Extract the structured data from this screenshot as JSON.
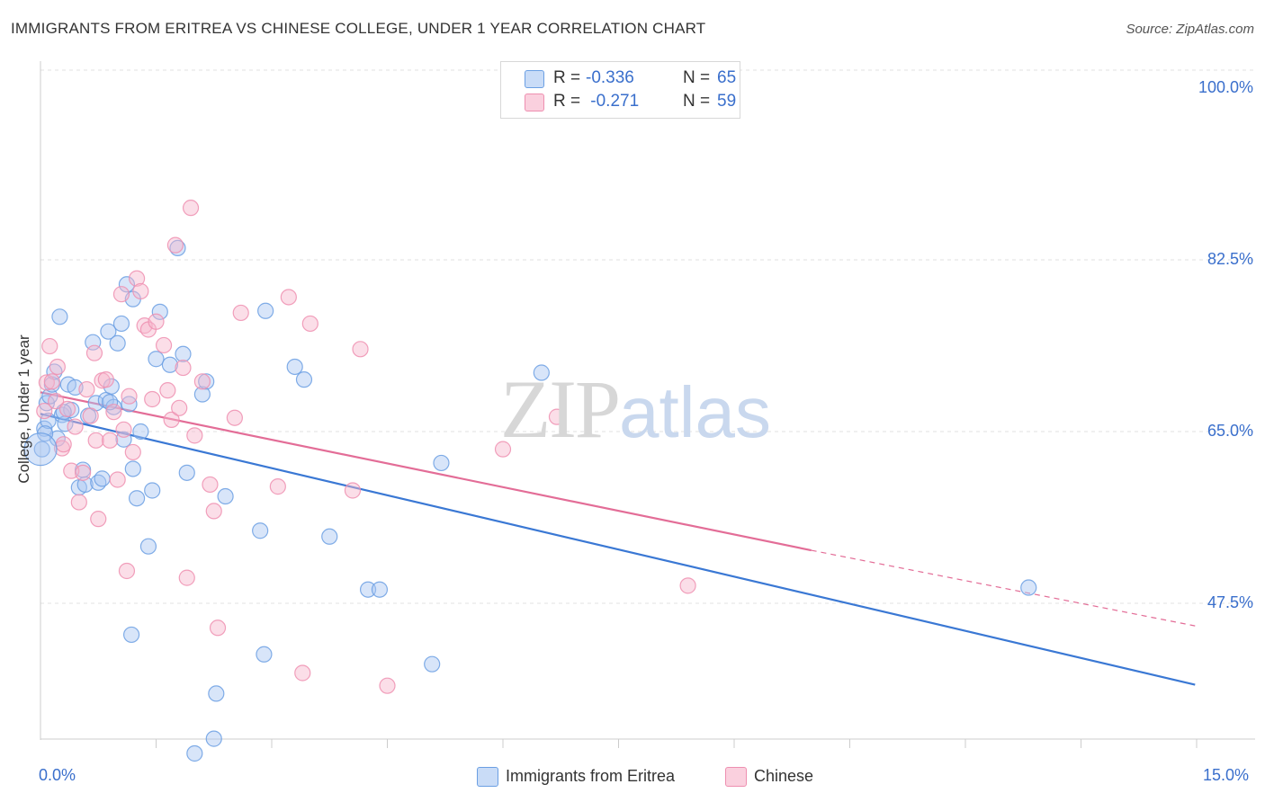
{
  "header": {
    "title": "IMMIGRANTS FROM ERITREA VS CHINESE COLLEGE, UNDER 1 YEAR CORRELATION CHART",
    "source": "Source: ZipAtlas.com"
  },
  "stats": [
    {
      "r_label": "R =",
      "r_value": "-0.336",
      "n_label": "N =",
      "n_value": "65",
      "color": "#a9c6f2"
    },
    {
      "r_label": "R =",
      "r_value": " -0.271",
      "n_label": "N =",
      "n_value": "59",
      "color": "#f6b6cb"
    }
  ],
  "legend": [
    {
      "label": "Immigrants from Eritrea",
      "color": "#a9c6f2"
    },
    {
      "label": "Chinese",
      "color": "#f6b6cb"
    }
  ],
  "watermark": {
    "zip": "ZIP",
    "atlas": "atlas"
  },
  "chart_data": {
    "type": "scatter",
    "title": "IMMIGRANTS FROM ERITREA VS CHINESE COLLEGE, UNDER 1 YEAR CORRELATION CHART",
    "xlabel": "",
    "ylabel": "College, Under 1 year",
    "xlim": [
      0,
      15
    ],
    "ylim": [
      33,
      101
    ],
    "x_ticks": [
      "0.0%",
      "15.0%"
    ],
    "y_ticks": [
      {
        "value": 100,
        "label": "100.0%"
      },
      {
        "value": 82.5,
        "label": "82.5%"
      },
      {
        "value": 65,
        "label": "65.0%"
      },
      {
        "value": 47.5,
        "label": "47.5%"
      }
    ],
    "grid": true,
    "legend_position": "bottom-center",
    "series": [
      {
        "name": "Immigrants from Eritrea",
        "color": "#6b9fe3",
        "fill": "#a9c6f2",
        "line_color": "#3a78d4",
        "trend": {
          "x": [
            0,
            14.98
          ],
          "y": [
            66.8,
            39.2
          ]
        },
        "points": [
          [
            0.02,
            63.2
          ],
          [
            0.05,
            65.3
          ],
          [
            0.08,
            67.9
          ],
          [
            0.1,
            66.1
          ],
          [
            0.12,
            68.6
          ],
          [
            0.15,
            69.8
          ],
          [
            0.18,
            71.1
          ],
          [
            0.22,
            64.3
          ],
          [
            0.25,
            76.7
          ],
          [
            0.28,
            66.7
          ],
          [
            0.32,
            65.8
          ],
          [
            0.36,
            69.8
          ],
          [
            0.4,
            67.2
          ],
          [
            0.45,
            69.5
          ],
          [
            0.5,
            59.3
          ],
          [
            0.55,
            61.1
          ],
          [
            0.58,
            59.6
          ],
          [
            0.62,
            66.6
          ],
          [
            0.68,
            74.1
          ],
          [
            0.72,
            67.9
          ],
          [
            0.75,
            59.8
          ],
          [
            0.8,
            60.2
          ],
          [
            0.85,
            68.2
          ],
          [
            0.88,
            75.2
          ],
          [
            0.92,
            69.6
          ],
          [
            0.95,
            67.5
          ],
          [
            1.0,
            74.0
          ],
          [
            1.05,
            76.0
          ],
          [
            1.08,
            64.2
          ],
          [
            1.12,
            80.0
          ],
          [
            1.15,
            67.8
          ],
          [
            1.2,
            61.2
          ],
          [
            1.25,
            58.2
          ],
          [
            1.3,
            65.0
          ],
          [
            1.4,
            53.3
          ],
          [
            1.45,
            59.0
          ],
          [
            1.5,
            72.4
          ],
          [
            1.55,
            77.2
          ],
          [
            1.68,
            71.8
          ],
          [
            1.78,
            83.7
          ],
          [
            1.85,
            72.9
          ],
          [
            1.9,
            60.8
          ],
          [
            2.0,
            32.2
          ],
          [
            2.1,
            68.8
          ],
          [
            2.15,
            70.1
          ],
          [
            2.25,
            33.7
          ],
          [
            2.28,
            38.3
          ],
          [
            2.4,
            58.4
          ],
          [
            2.85,
            54.9
          ],
          [
            2.9,
            42.3
          ],
          [
            2.92,
            77.3
          ],
          [
            3.3,
            71.6
          ],
          [
            3.42,
            70.3
          ],
          [
            3.75,
            54.3
          ],
          [
            4.25,
            48.9
          ],
          [
            4.4,
            48.9
          ],
          [
            5.08,
            41.3
          ],
          [
            5.2,
            61.8
          ],
          [
            6.5,
            71.0
          ],
          [
            12.82,
            49.1
          ],
          [
            0.9,
            68.0
          ],
          [
            1.2,
            78.5
          ],
          [
            0.06,
            64.8
          ],
          [
            0.3,
            67.0
          ],
          [
            1.18,
            44.3
          ]
        ]
      },
      {
        "name": "Chinese",
        "color": "#ee8fb0",
        "fill": "#f6b6cb",
        "line_color": "#e36d97",
        "trend": {
          "x": [
            0,
            10.0
          ],
          "y": [
            69.0,
            52.9
          ]
        },
        "trend_dash": {
          "x": [
            10.0,
            14.98
          ],
          "y": [
            52.9,
            45.2
          ]
        },
        "points": [
          [
            0.05,
            67.1
          ],
          [
            0.08,
            70.0
          ],
          [
            0.12,
            73.7
          ],
          [
            0.15,
            70.1
          ],
          [
            0.2,
            68.1
          ],
          [
            0.22,
            71.6
          ],
          [
            0.28,
            63.3
          ],
          [
            0.3,
            63.7
          ],
          [
            0.35,
            67.3
          ],
          [
            0.4,
            61.0
          ],
          [
            0.45,
            65.5
          ],
          [
            0.5,
            57.8
          ],
          [
            0.55,
            60.8
          ],
          [
            0.6,
            69.3
          ],
          [
            0.65,
            66.6
          ],
          [
            0.7,
            73.0
          ],
          [
            0.72,
            64.1
          ],
          [
            0.75,
            56.1
          ],
          [
            0.8,
            70.2
          ],
          [
            0.85,
            70.3
          ],
          [
            0.9,
            64.1
          ],
          [
            0.95,
            67.0
          ],
          [
            1.0,
            60.1
          ],
          [
            1.05,
            79.0
          ],
          [
            1.08,
            65.2
          ],
          [
            1.12,
            50.8
          ],
          [
            1.15,
            68.6
          ],
          [
            1.2,
            62.9
          ],
          [
            1.25,
            80.6
          ],
          [
            1.3,
            79.3
          ],
          [
            1.35,
            75.8
          ],
          [
            1.4,
            75.4
          ],
          [
            1.45,
            68.3
          ],
          [
            1.5,
            76.2
          ],
          [
            1.6,
            73.8
          ],
          [
            1.65,
            69.2
          ],
          [
            1.7,
            66.2
          ],
          [
            1.75,
            84.0
          ],
          [
            1.8,
            67.4
          ],
          [
            1.85,
            71.5
          ],
          [
            1.9,
            50.1
          ],
          [
            1.95,
            87.8
          ],
          [
            2.0,
            64.6
          ],
          [
            2.1,
            70.1
          ],
          [
            2.2,
            59.6
          ],
          [
            2.25,
            56.9
          ],
          [
            2.3,
            45.0
          ],
          [
            2.52,
            66.4
          ],
          [
            2.6,
            77.1
          ],
          [
            3.08,
            59.4
          ],
          [
            3.22,
            78.7
          ],
          [
            3.4,
            40.4
          ],
          [
            3.5,
            76.0
          ],
          [
            4.05,
            59.0
          ],
          [
            4.15,
            73.4
          ],
          [
            4.5,
            39.1
          ],
          [
            6.0,
            63.2
          ],
          [
            6.7,
            66.5
          ],
          [
            8.4,
            49.3
          ]
        ]
      }
    ]
  }
}
